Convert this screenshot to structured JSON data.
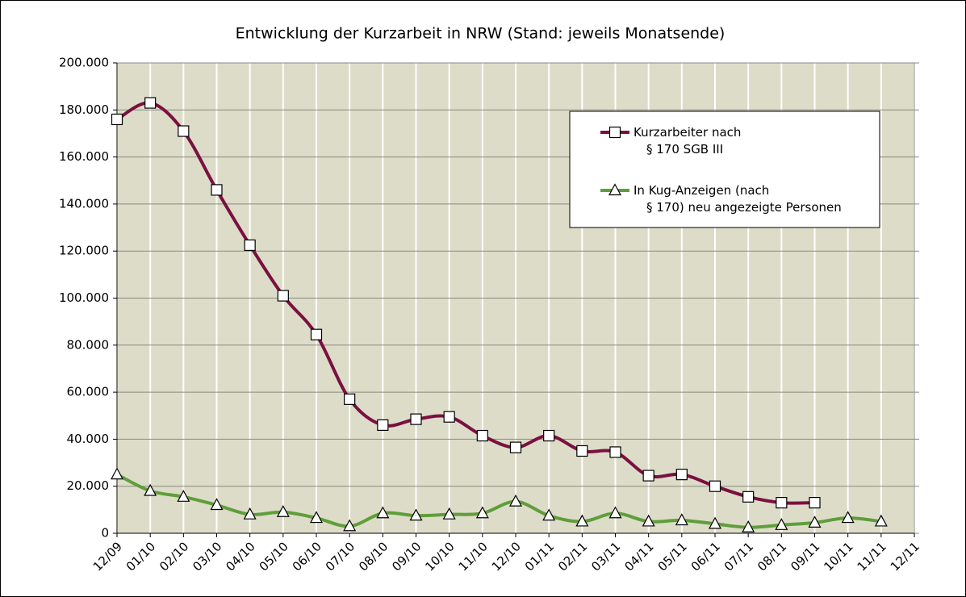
{
  "chart_data": {
    "type": "line",
    "title": "Entwicklung der Kurzarbeit in NRW (Stand: jeweils Monatsende)",
    "categories": [
      "12/09",
      "01/10",
      "02/10",
      "03/10",
      "04/10",
      "05/10",
      "06/10",
      "07/10",
      "08/10",
      "09/10",
      "10/10",
      "11/10",
      "12/10",
      "01/11",
      "02/11",
      "03/11",
      "04/11",
      "05/11",
      "06/11",
      "07/11",
      "08/11",
      "09/11",
      "10/11",
      "11/11",
      "12/11"
    ],
    "series": [
      {
        "name": "Kurzarbeiter nach § 170 SGB III",
        "color": "#7a1040",
        "marker": "square",
        "values": [
          176000,
          183000,
          171000,
          146000,
          122500,
          101000,
          84500,
          57000,
          46000,
          48500,
          49500,
          41500,
          36500,
          41500,
          35000,
          34500,
          24500,
          25000,
          20000,
          15500,
          13000,
          13000,
          null,
          null,
          null
        ]
      },
      {
        "name": "In Kug-Anzeigen (nach § 170) neu angezeigte Personen",
        "color": "#5f9e3a",
        "marker": "triangle",
        "values": [
          25000,
          18000,
          15500,
          12000,
          8000,
          9000,
          6500,
          3000,
          8500,
          7500,
          8000,
          8500,
          13500,
          7500,
          5000,
          8500,
          5000,
          5500,
          4000,
          2500,
          3500,
          4500,
          6500,
          5000,
          null
        ]
      }
    ],
    "ylim": [
      0,
      200000
    ],
    "yticks": [
      0,
      {
        "value": 20000,
        "label": "20.000"
      },
      {
        "value": 40000,
        "label": "40.000"
      },
      {
        "value": 60000,
        "label": "60.000"
      },
      {
        "value": 80000,
        "label": "80.000"
      },
      {
        "value": 100000,
        "label": "100.000"
      },
      {
        "value": 120000,
        "label": "120.000"
      },
      {
        "value": 140000,
        "label": "140.000"
      },
      {
        "value": 160000,
        "label": "160.000"
      },
      {
        "value": 180000,
        "label": "180.000"
      },
      {
        "value": 200000,
        "label": "200.000"
      }
    ],
    "grid": true,
    "legend": "upper right"
  }
}
